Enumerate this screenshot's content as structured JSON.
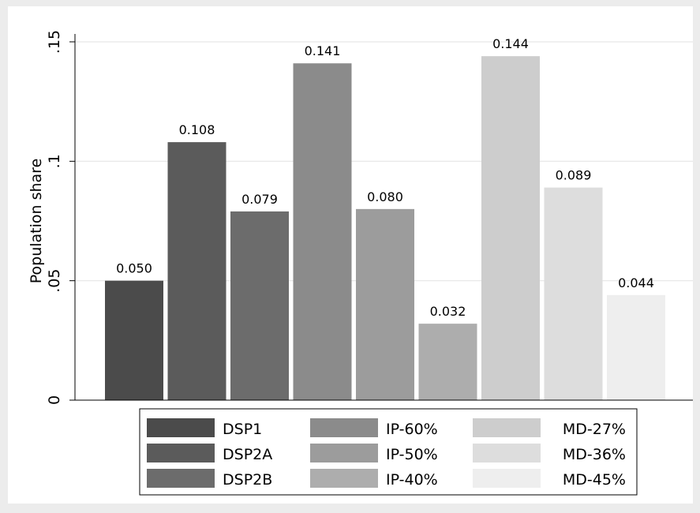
{
  "chart_data": {
    "type": "bar",
    "ylabel": "Population share",
    "xlabel": "",
    "ylim": [
      0,
      0.15
    ],
    "yticks": [
      {
        "value": 0,
        "label": "0"
      },
      {
        "value": 0.05,
        "label": ".05"
      },
      {
        "value": 0.1,
        "label": ".1"
      },
      {
        "value": 0.15,
        "label": ".15"
      }
    ],
    "grid": true,
    "legend_position": "bottom",
    "categories": [
      "DSP1",
      "DSP2A",
      "DSP2B",
      "IP-60%",
      "IP-50%",
      "IP-40%",
      "MD-27%",
      "MD-36%",
      "MD-45%"
    ],
    "values": [
      0.05,
      0.108,
      0.079,
      0.141,
      0.08,
      0.032,
      0.144,
      0.089,
      0.044
    ],
    "data_labels": [
      "0.050",
      "0.108",
      "0.079",
      "0.141",
      "0.080",
      "0.032",
      "0.144",
      "0.089",
      "0.044"
    ],
    "colors": [
      "#4b4b4b",
      "#5b5b5b",
      "#6c6c6c",
      "#8b8b8b",
      "#9c9c9c",
      "#adadad",
      "#cdcdcd",
      "#dddddd",
      "#eeeeee"
    ]
  }
}
